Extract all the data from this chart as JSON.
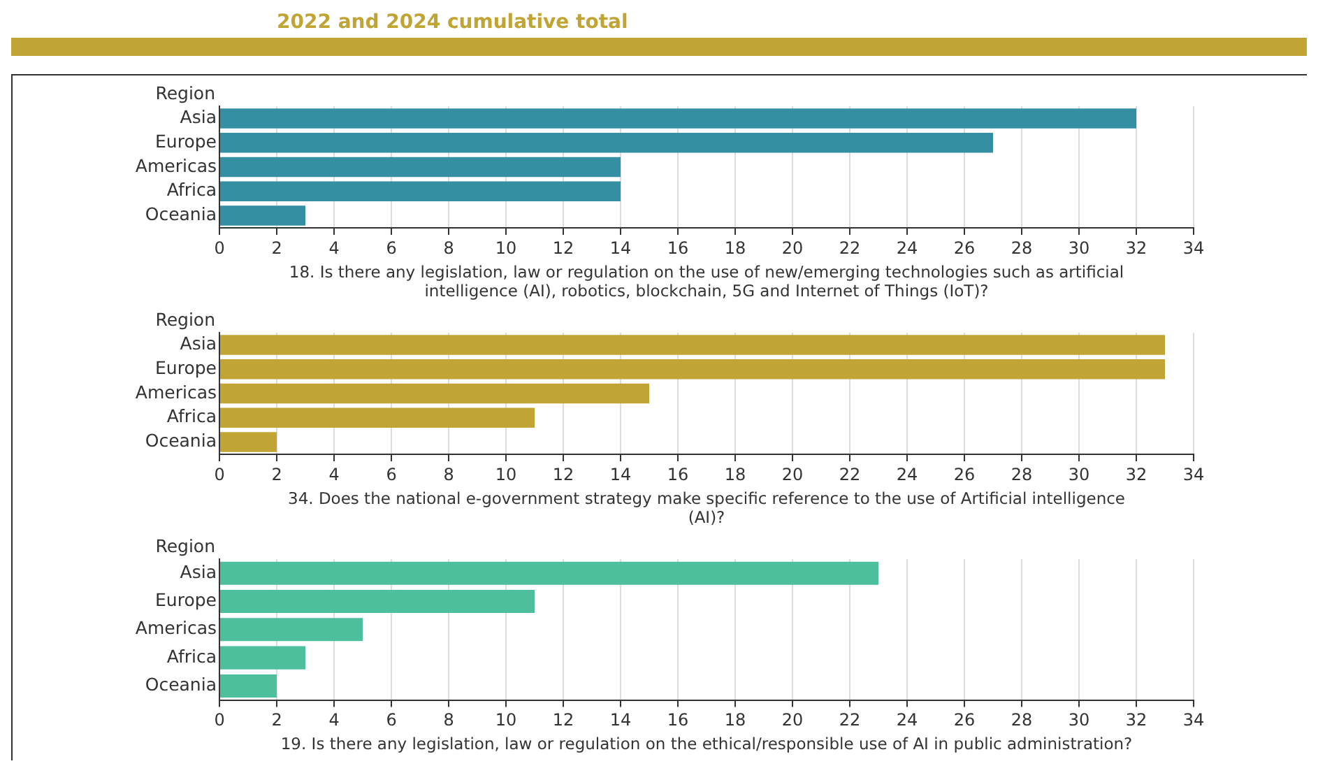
{
  "chart_data": [
    {
      "type": "bar",
      "orientation": "horizontal",
      "title": "2022 and 2024 cumulative total",
      "ylabel": "Region",
      "xlabel": "18. Is there any legislation, law or regulation on the use of new/emerging technologies such as artificial intelligence (AI), robotics, blockchain, 5G and Internet of Things (IoT)?",
      "categories": [
        "Asia",
        "Europe",
        "Americas",
        "Africa",
        "Oceania"
      ],
      "values": [
        32,
        27,
        14,
        14,
        3
      ],
      "color": "#358fa3",
      "xlim": [
        0,
        34
      ],
      "xticks": [
        0,
        2,
        4,
        6,
        8,
        10,
        12,
        14,
        16,
        18,
        20,
        22,
        24,
        26,
        28,
        30,
        32,
        34
      ],
      "grid": "x",
      "legend": false
    },
    {
      "type": "bar",
      "orientation": "horizontal",
      "ylabel": "Region",
      "xlabel": "34. Does the national e-government strategy make specific reference to the use of Artificial intelligence (AI)?",
      "categories": [
        "Asia",
        "Europe",
        "Americas",
        "Africa",
        "Oceania"
      ],
      "values": [
        33,
        33,
        15,
        11,
        2
      ],
      "color": "#c0a535",
      "xlim": [
        0,
        34
      ],
      "xticks": [
        0,
        2,
        4,
        6,
        8,
        10,
        12,
        14,
        16,
        18,
        20,
        22,
        24,
        26,
        28,
        30,
        32,
        34
      ],
      "grid": "x",
      "legend": false
    },
    {
      "type": "bar",
      "orientation": "horizontal",
      "ylabel": "Region",
      "xlabel": "19. Is there any legislation, law or regulation on the ethical/responsible use of AI in public administration?",
      "categories": [
        "Asia",
        "Europe",
        "Americas",
        "Africa",
        "Oceania"
      ],
      "values": [
        23,
        11,
        5,
        3,
        2
      ],
      "color": "#4dbf9c",
      "xlim": [
        0,
        34
      ],
      "xticks": [
        0,
        2,
        4,
        6,
        8,
        10,
        12,
        14,
        16,
        18,
        20,
        22,
        24,
        26,
        28,
        30,
        32,
        34
      ],
      "grid": "x",
      "legend": false
    }
  ]
}
